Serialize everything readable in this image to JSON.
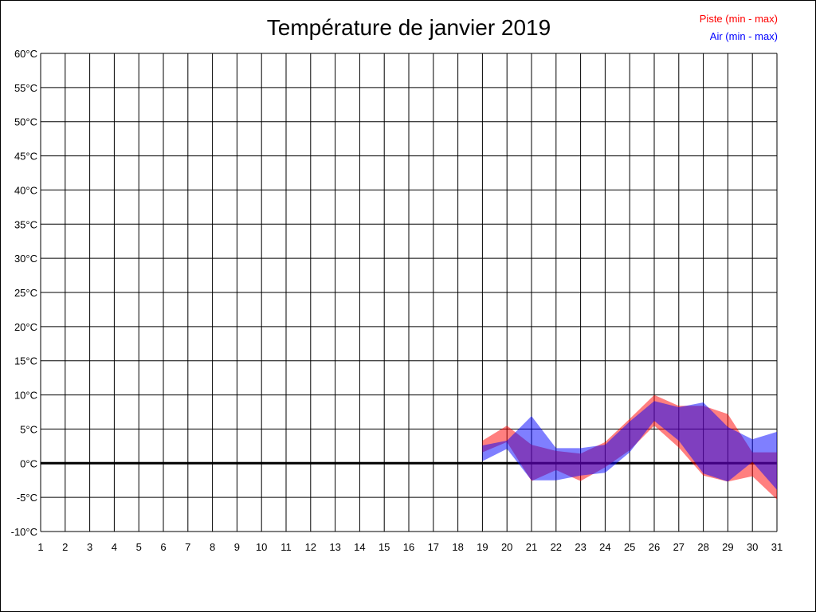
{
  "chart_data": {
    "type": "area",
    "title": "Température de janvier 2019",
    "xlabel": "",
    "ylabel": "",
    "x": [
      1,
      2,
      3,
      4,
      5,
      6,
      7,
      8,
      9,
      10,
      11,
      12,
      13,
      14,
      15,
      16,
      17,
      18,
      19,
      20,
      21,
      22,
      23,
      24,
      25,
      26,
      27,
      28,
      29,
      30,
      31
    ],
    "y_ticks": [
      "60°C",
      "55°C",
      "50°C",
      "45°C",
      "40°C",
      "35°C",
      "30°C",
      "25°C",
      "20°C",
      "15°C",
      "10°C",
      "5°C",
      "0°C",
      "-5°C",
      "-10°C"
    ],
    "ylim": [
      -10,
      60
    ],
    "grid": true,
    "legend_placement": "top-right",
    "series": [
      {
        "name": "Piste (min - max)",
        "color": "#ff0000",
        "days": [
          19,
          20,
          21,
          22,
          23,
          24,
          25,
          26,
          27,
          28,
          29,
          30,
          31
        ],
        "min": [
          1.6,
          3.1,
          -2.6,
          -1.0,
          -2.6,
          -0.6,
          1.9,
          5.5,
          2.3,
          -1.8,
          -2.7,
          -1.9,
          -5.3
        ],
        "max": [
          3.3,
          5.5,
          2.7,
          1.8,
          1.4,
          3.1,
          6.5,
          10.0,
          8.4,
          8.4,
          7.2,
          1.6,
          1.6
        ]
      },
      {
        "name": "Air (min - max)",
        "color": "#0000ff",
        "days": [
          19,
          20,
          21,
          22,
          23,
          24,
          25,
          26,
          27,
          28,
          29,
          30,
          31
        ],
        "min": [
          0.3,
          2.1,
          -2.5,
          -2.5,
          -1.8,
          -1.4,
          1.6,
          6.2,
          3.3,
          -1.5,
          -2.7,
          0.2,
          -3.9
        ],
        "max": [
          2.6,
          3.3,
          6.9,
          2.2,
          2.2,
          2.7,
          6.1,
          9.1,
          8.2,
          8.9,
          5.3,
          3.5,
          4.6
        ]
      }
    ]
  }
}
